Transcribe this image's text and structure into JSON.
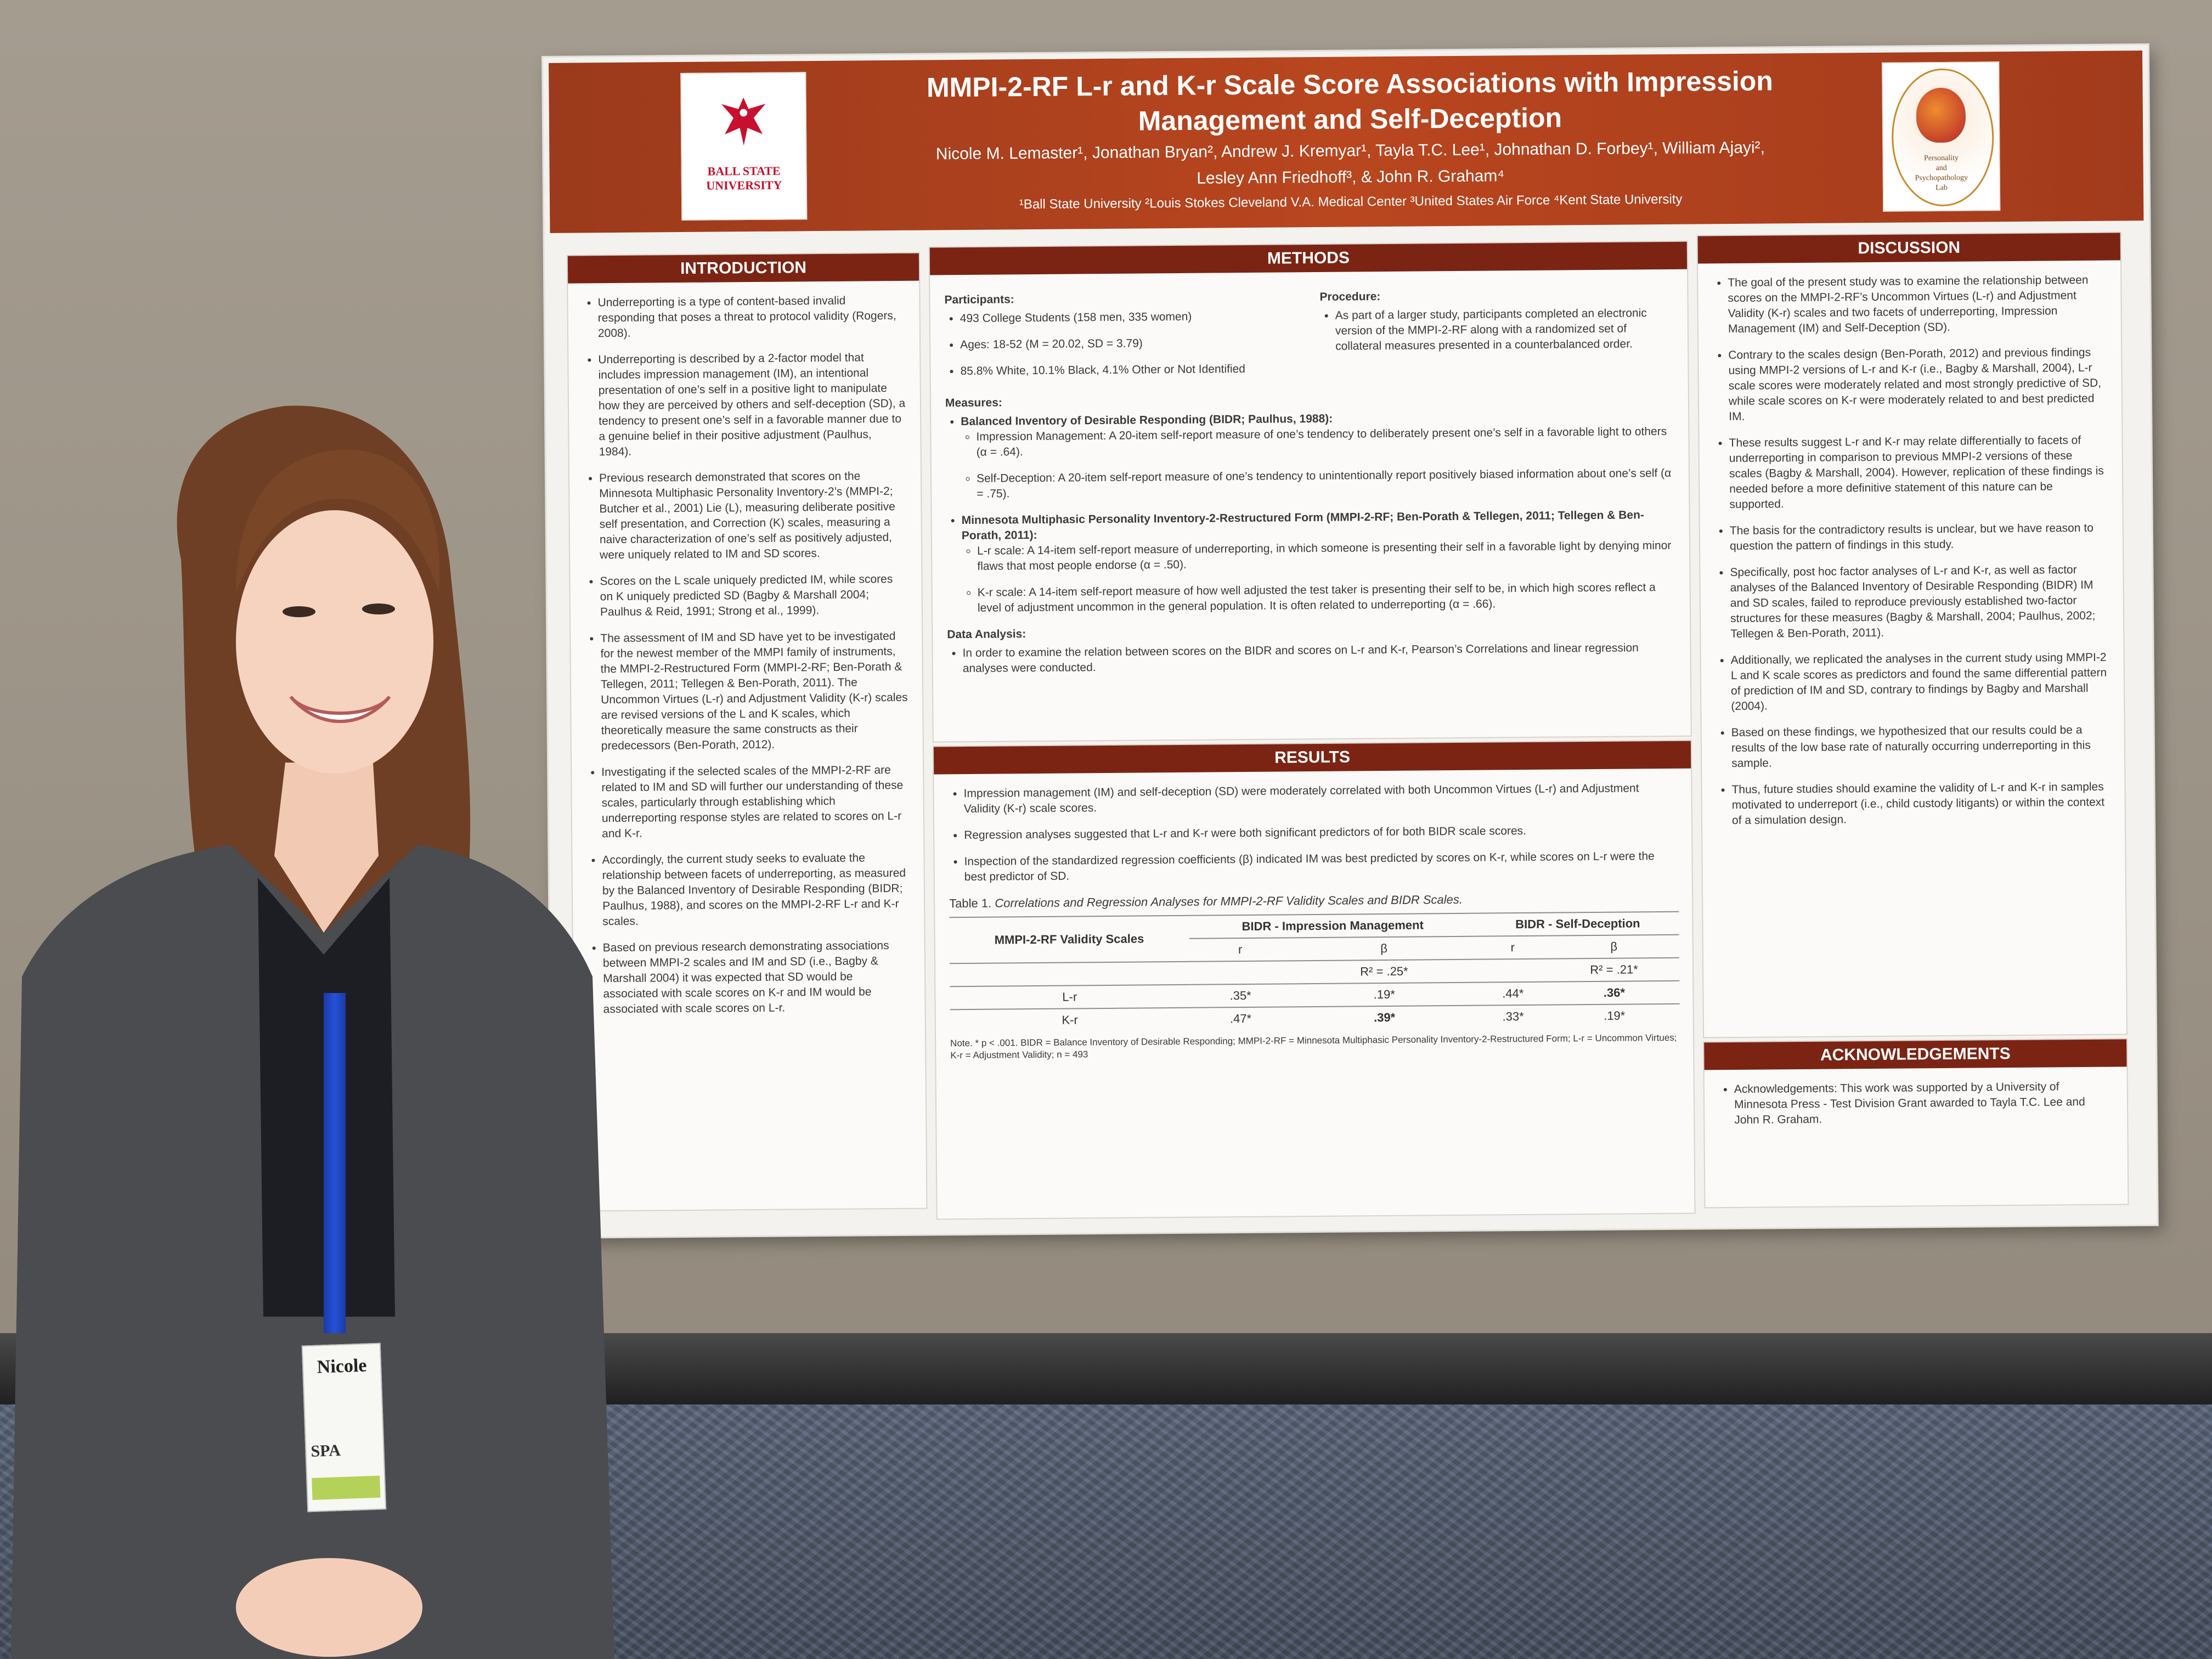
{
  "poster": {
    "title_line1": "MMPI-2-RF L-r and K-r Scale Score Associations with Impression",
    "title_line2": "Management and Self-Deception",
    "authors_line1": "Nicole M. Lemaster¹, Jonathan Bryan², Andrew J. Kremyar¹, Tayla T.C. Lee¹, Johnathan D. Forbey¹, William Ajayi²,",
    "authors_line2": "Lesley Ann Friedhoff³, & John R. Graham⁴",
    "affiliations": "¹Ball State University  ²Louis Stokes Cleveland V.A. Medical Center  ³United States Air Force  ⁴Kent State University",
    "logo_left_line1": "BALL STATE",
    "logo_left_line2": "UNIVERSITY",
    "logo_right_line1": "Personality",
    "logo_right_line2": "and",
    "logo_right_line3": "Psychopathology",
    "logo_right_line4": "Lab",
    "introduction": {
      "heading": "INTRODUCTION",
      "bullets": [
        "Underreporting is a type of content-based invalid responding that poses a threat to protocol validity (Rogers, 2008).",
        "Underreporting is described by a 2-factor model that includes impression management (IM), an intentional presentation of one’s self in a positive light to manipulate how they are perceived by others and self-deception (SD), a tendency to present one’s self in a favorable manner due to a genuine belief in their positive adjustment (Paulhus, 1984).",
        "Previous research demonstrated that scores on the Minnesota Multiphasic Personality Inventory-2’s (MMPI-2; Butcher et al., 2001) Lie (L), measuring deliberate positive self presentation, and Correction (K) scales, measuring a naive characterization of one’s self as positively adjusted, were uniquely related to IM and SD scores.",
        "Scores on the L scale uniquely predicted IM, while scores on K uniquely predicted SD (Bagby & Marshall 2004; Paulhus & Reid, 1991; Strong et al., 1999).",
        "The assessment of IM and SD have yet to be investigated for the newest member of the MMPI family of instruments, the MMPI-2-Restructured Form (MMPI-2-RF; Ben-Porath & Tellegen, 2011; Tellegen & Ben-Porath, 2011). The Uncommon Virtues (L-r) and Adjustment Validity (K-r) scales are revised versions of the L and K scales, which theoretically measure the same constructs as their predecessors (Ben-Porath, 2012).",
        "Investigating if the selected scales of the MMPI-2-RF are related to IM and SD will further our understanding of these scales, particularly through establishing which underreporting response styles are related to scores on L-r and K-r.",
        "Accordingly, the current study seeks to evaluate the relationship between facets of underreporting, as measured by the Balanced Inventory of Desirable Responding (BIDR; Paulhus, 1988), and scores on the MMPI-2-RF L-r and K-r scales.",
        "Based on previous research demonstrating associations between MMPI-2 scales and IM and SD (i.e., Bagby & Marshall 2004) it was expected that SD would be associated with scale scores on K-r and IM would be associated with scale scores on L-r."
      ]
    },
    "methods": {
      "heading": "METHODS",
      "participants_label": "Participants:",
      "participants": [
        "493 College Students (158 men, 335 women)",
        "Ages: 18-52 (M = 20.02, SD = 3.79)",
        "85.8% White, 10.1% Black, 4.1% Other or Not Identified"
      ],
      "procedure_label": "Procedure:",
      "procedure": "As part of a larger study, participants completed an electronic version of the MMPI-2-RF along with a randomized set of collateral measures presented in a counterbalanced order.",
      "measures_label": "Measures:",
      "bidr_title": "Balanced Inventory of Desirable Responding (BIDR; Paulhus, 1988):",
      "bidr_im": "Impression Management: A 20-item self-report measure of one’s tendency to deliberately present one’s self in a favorable light to others (α = .64).",
      "bidr_sd": "Self-Deception: A 20-item self-report measure of one’s tendency to unintentionally report positively biased information about one’s self (α = .75).",
      "mmpi_title": "Minnesota Multiphasic Personality Inventory-2-Restructured Form (MMPI-2-RF; Ben-Porath & Tellegen, 2011; Tellegen & Ben-Porath, 2011):",
      "mmpi_lr": "L-r scale: A 14-item self-report measure of underreporting, in which someone is presenting their self in a favorable light by denying minor flaws that most people endorse (α = .50).",
      "mmpi_kr": "K-r scale: A 14-item self-report measure of how well adjusted the test taker is presenting their self to be, in which high scores reflect a level of adjustment uncommon in the general population. It is often related to underreporting (α = .66).",
      "analysis_label": "Data Analysis:",
      "analysis": "In order to examine the relation between scores on the BIDR and scores on L-r and K-r, Pearson’s Correlations and linear regression analyses were conducted."
    },
    "results": {
      "heading": "RESULTS",
      "bullets": [
        "Impression management (IM) and self-deception (SD) were moderately correlated with both Uncommon Virtues (L-r) and Adjustment Validity (K-r) scale scores.",
        "Regression analyses suggested that L-r and K-r were both significant predictors of for both BIDR scale scores.",
        "Inspection of the standardized regression coefficients (β) indicated IM was best predicted by scores on K-r, while scores on L-r were the best predictor of SD."
      ],
      "table_caption_prefix": "Table 1.",
      "table_caption": "Correlations and Regression Analyses for MMPI-2-RF Validity Scales and BIDR Scales.",
      "table": {
        "row_header": "MMPI-2-RF Validity Scales",
        "group1": "BIDR - Impression Management",
        "group2": "BIDR - Self-Deception",
        "sub_r": "r",
        "sub_b": "β",
        "r2_im": "R² = .25*",
        "r2_sd": "R² = .21*",
        "rows": [
          {
            "scale": "L-r",
            "im_r": ".35*",
            "im_b": ".19*",
            "sd_r": ".44*",
            "sd_b": ".36*"
          },
          {
            "scale": "K-r",
            "im_r": ".47*",
            "im_b": ".39*",
            "sd_r": ".33*",
            "sd_b": ".19*"
          }
        ]
      },
      "note": "Note. * p < .001. BIDR = Balance Inventory of Desirable Responding; MMPI-2-RF = Minnesota Multiphasic Personality Inventory-2-Restructured Form; L-r = Uncommon Virtues; K-r = Adjustment Validity; n = 493"
    },
    "discussion": {
      "heading": "DISCUSSION",
      "bullets": [
        "The goal of the present study was to examine the relationship between scores on the MMPI-2-RF’s Uncommon Virtues (L-r) and Adjustment Validity (K-r) scales and two facets of underreporting, Impression Management (IM) and Self-Deception (SD).",
        "Contrary to the scales design (Ben-Porath, 2012) and previous findings using MMPI-2 versions of L-r and K-r (i.e., Bagby & Marshall, 2004), L-r scale scores were moderately related and most strongly predictive of SD, while scale scores on K-r were moderately related to and best predicted IM.",
        "These results suggest L-r and K-r may relate differentially to facets of underreporting in comparison to previous MMPI-2 versions of these scales (Bagby & Marshall, 2004). However, replication of these findings is needed before a more definitive statement of this nature can be supported.",
        "The basis for the contradictory results is unclear, but we have reason to question the pattern of findings in this study.",
        "Specifically, post hoc factor analyses of L-r and K-r, as well as factor analyses of the Balanced Inventory of Desirable Responding (BIDR) IM and SD scales, failed to reproduce previously established two-factor structures for these measures (Bagby & Marshall, 2004; Paulhus, 2002; Tellegen & Ben-Porath, 2011).",
        "Additionally, we replicated the analyses in the current study using MMPI-2 L and K scale scores as predictors and found the same differential pattern of prediction of IM and SD, contrary to findings by Bagby and Marshall (2004).",
        "Based on these findings, we hypothesized that our results could be a results of the low base rate of naturally occurring underreporting in this sample.",
        "Thus, future studies should examine the validity of L-r and K-r in samples motivated to underreport (i.e., child custody litigants) or within the context of a simulation design."
      ]
    },
    "acknowledgements": {
      "heading": "ACKNOWLEDGEMENTS",
      "text": "Acknowledgements: This work was supported by a University of Minnesota Press - Test Division Grant awarded to Tayla T.C. Lee and John R. Graham."
    }
  },
  "badge": {
    "name": "Nicole",
    "org": "SPA"
  },
  "colors": {
    "banner": "#b9461f",
    "section_header": "#7b2414",
    "wall": "#a29a8d",
    "lanyard": "#2452d8"
  }
}
